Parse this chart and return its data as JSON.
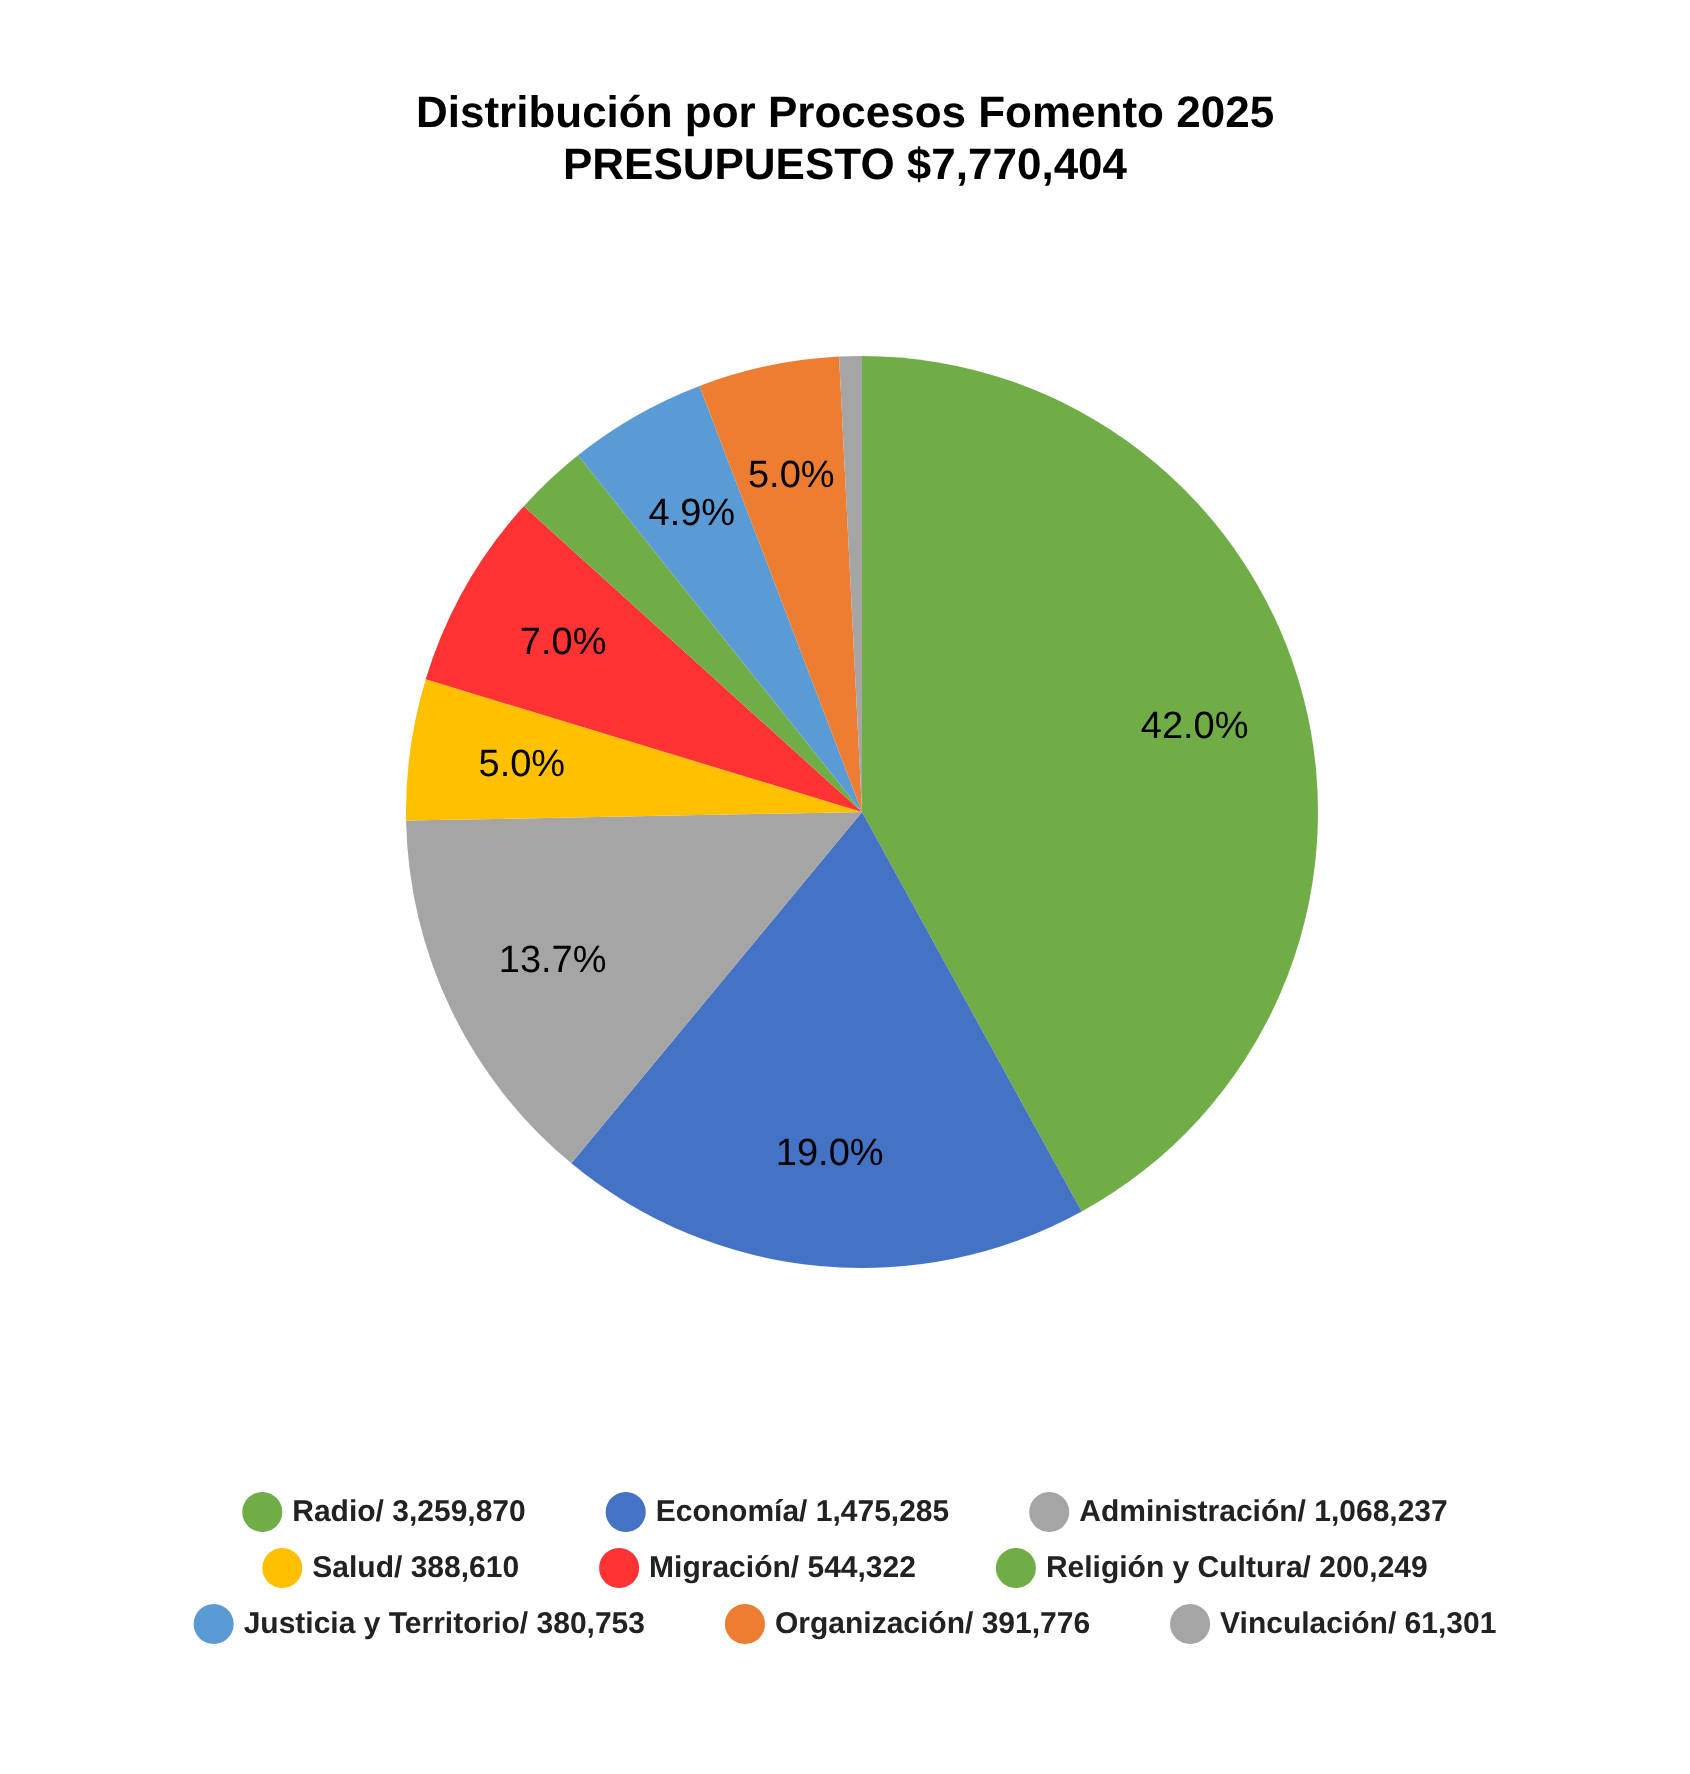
{
  "chart_data": {
    "type": "pie",
    "title": "Distribución por Procesos Fomento 2025",
    "subtitle": "PRESUPUESTO $7,770,404",
    "categories": [
      "Radio/ 3,259,870",
      "Economía/ 1,475,285",
      "Administración/ 1,068,237",
      "Salud/ 388,610",
      "Migración/ 544,322",
      "Religión y Cultura/ 200,249",
      "Justicia y Territorio/ 380,753",
      "Organización/ 391,776",
      "Vinculación/ 61,301"
    ],
    "values": [
      42.0,
      19.0,
      13.7,
      5.0,
      7.0,
      2.6,
      4.9,
      5.0,
      0.8
    ],
    "colors": [
      "#70ad47",
      "#4472c4",
      "#a5a5a5",
      "#ffc000",
      "#ff3333",
      "#70ad47",
      "#5b9bd5",
      "#ed7d31",
      "#a5a5a5"
    ],
    "value_labels": [
      "42.0%",
      "19.0%",
      "13.7%",
      "5.0%",
      "7.0%",
      null,
      "4.9%",
      "5.0%",
      null
    ],
    "legend": "bottom"
  }
}
